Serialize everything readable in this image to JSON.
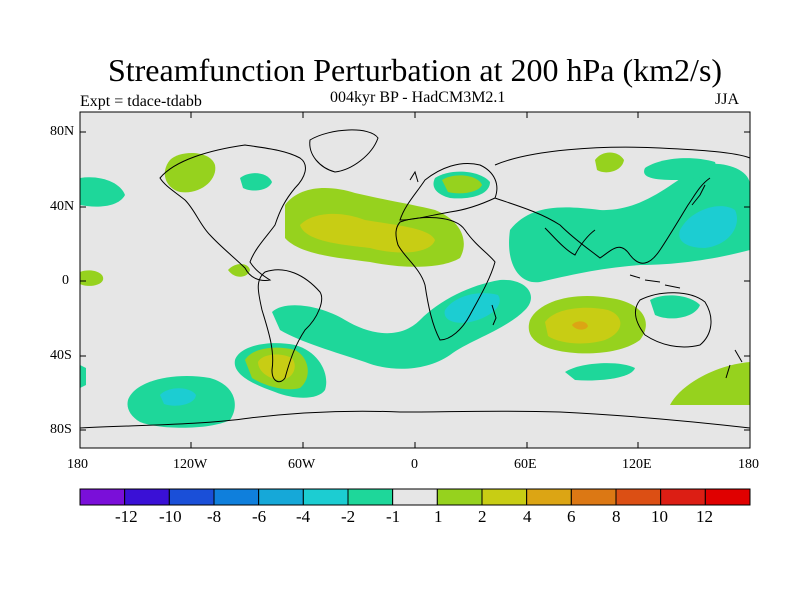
{
  "title": "Streamfunction Perturbation at 200 hPa (km2/s)",
  "subtitle": "004kyr BP - HadCM3M2.1",
  "experiment": "Expt = tdace-tdabb",
  "season": "JJA",
  "lat_labels": [
    "80N",
    "40N",
    "0",
    "40S",
    "80S"
  ],
  "lon_labels": [
    "180",
    "120W",
    "60W",
    "0",
    "60E",
    "120E",
    "180"
  ],
  "colorbar": {
    "labels": [
      "-12",
      "-10",
      "-8",
      "-6",
      "-4",
      "-2",
      "-1",
      "1",
      "2",
      "4",
      "6",
      "8",
      "10",
      "12"
    ],
    "colors": [
      "#7a0fd9",
      "#3a10d6",
      "#1a4fd8",
      "#0f7fdc",
      "#16a8d8",
      "#1ccdd2",
      "#1ed79a",
      "#e6e6e6",
      "#96d21e",
      "#c8cd14",
      "#dca514",
      "#dc7814",
      "#dc4f14",
      "#dc1e14",
      "#e00000"
    ]
  },
  "colors": {
    "background": "#e6e6e6",
    "neg_light": "#1ed79a",
    "neg_mid": "#1ccdd2",
    "pos_light": "#96d21e",
    "pos_mid": "#c8cd14",
    "pos_strong": "#dca514"
  }
}
